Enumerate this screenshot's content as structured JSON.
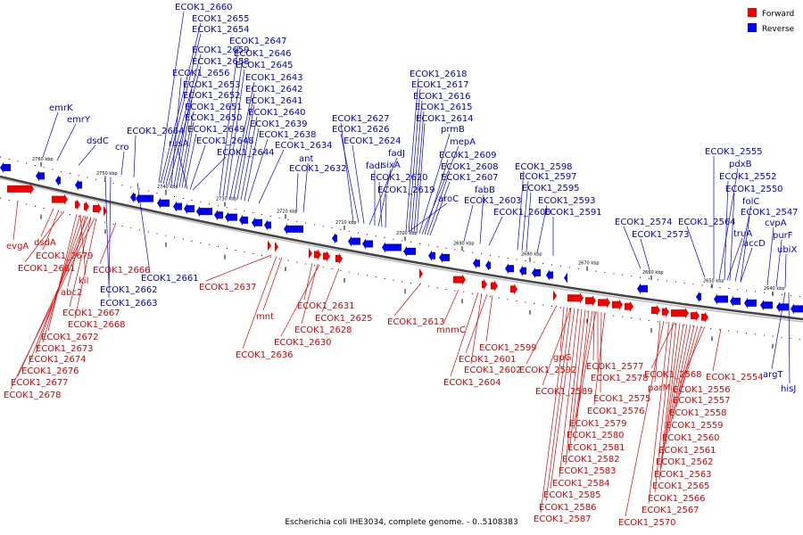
{
  "legend": {
    "forward": {
      "label": "Forward",
      "color": "#ee0000"
    },
    "reverse": {
      "label": "Reverse",
      "color": "#0000ee"
    }
  },
  "caption": "Escherichia coli IHE3034, complete genome. - 0..5108383",
  "ticks": [
    "2760 kbp",
    "2750 kbp",
    "2740 kbp",
    "2730 kbp",
    "2720 kbp",
    "2710 kbp",
    "2700 kbp",
    "2690 kbp",
    "2680 kbp",
    "2670 kbp",
    "2660 kbp",
    "2650 kbp",
    "2640 kbp"
  ],
  "reverse_labels": [
    "ECOK1_2660",
    "ECOK1_2655",
    "ECOK1_2654",
    "ECOK1_2647",
    "ECOK1_2659",
    "ECOK1_2646",
    "ECOK1_2658",
    "ECOK1_2645",
    "ECOK1_2656",
    "ECOK1_2643",
    "ECOK1_2653",
    "ECOK1_2642",
    "ECOK1_2652",
    "ECOK1_2641",
    "ECOK1_2651",
    "ECOK1_2640",
    "ECOK1_2650",
    "ECOK1_2639",
    "ECOK1_2664",
    "ECOK1_2649",
    "ECOK1_2638",
    "rusA",
    "ECOK1_2648",
    "ECOK1_2634",
    "ECOK1_2644",
    "ant",
    "ECOK1_2632",
    "emrK",
    "emrY",
    "dsdC",
    "cro",
    "ECOK1_2618",
    "ECOK1_2617",
    "ECOK1_2616",
    "ECOK1_2615",
    "ECOK1_2627",
    "ECOK1_2614",
    "ECOK1_2626",
    "prmB",
    "ECOK1_2624",
    "mepA",
    "fadJ",
    "ECOK1_2609",
    "fadI",
    "sixA",
    "ECOK1_2608",
    "ECOK1_2620",
    "ECOK1_2607",
    "ECOK1_2619",
    "fabB",
    "aroC",
    "ECOK1_2603",
    "ECOK1_2600",
    "ECOK1_2598",
    "ECOK1_2597",
    "ECOK1_2595",
    "ECOK1_2593",
    "ECOK1_2591",
    "ECOK1_2555",
    "pdxB",
    "ECOK1_2552",
    "ECOK1_2550",
    "folC",
    "ECOK1_2547",
    "cvpA",
    "purF",
    "ubiX",
    "ECOK1_2574",
    "ECOK1_2573",
    "ECOK1_2564",
    "truA",
    "accD",
    "ECOK1_2661",
    "ECOK1_2662",
    "ECOK1_2663",
    "argT",
    "hisJ"
  ],
  "forward_labels": [
    "evgA",
    "dsdA",
    "ECOK1_2679",
    "ECOK1_2681",
    "ECOK1_2666",
    "kil",
    "abc2",
    "ECOK1_2667",
    "ECOK1_2668",
    "ECOK1_2672",
    "ECOK1_2673",
    "ECOK1_2674",
    "ECOK1_2676",
    "ECOK1_2677",
    "ECOK1_2678",
    "ECOK1_2637",
    "mnt",
    "ECOK1_2636",
    "ECOK1_2631",
    "ECOK1_2628",
    "ECOK1_2630",
    "ECOK1_2625",
    "ECOK1_2613",
    "mnmC",
    "ECOK1_2599",
    "ECOK1_2601",
    "ECOK1_2602",
    "ECOK1_2604",
    "gpG",
    "ECOK1_2592",
    "ECOK1_2589",
    "ECOK1_2577",
    "ECOK1_2578",
    "ECOK1_2575",
    "ECOK1_2576",
    "ECOK1_2579",
    "ECOK1_2580",
    "ECOK1_2581",
    "ECOK1_2582",
    "ECOK1_2583",
    "ECOK1_2584",
    "ECOK1_2585",
    "ECOK1_2586",
    "ECOK1_2587",
    "ECOK1_2570",
    "ECOK1_2568",
    "parM",
    "ECOK1_2556",
    "ECOK1_2557",
    "ECOK1_2558",
    "ECOK1_2559",
    "ECOK1_2560",
    "ECOK1_2561",
    "ECOK1_2562",
    "ECOK1_2563",
    "ECOK1_2565",
    "ECOK1_2566",
    "ECOK1_2567",
    "ECOK1_2554"
  ]
}
